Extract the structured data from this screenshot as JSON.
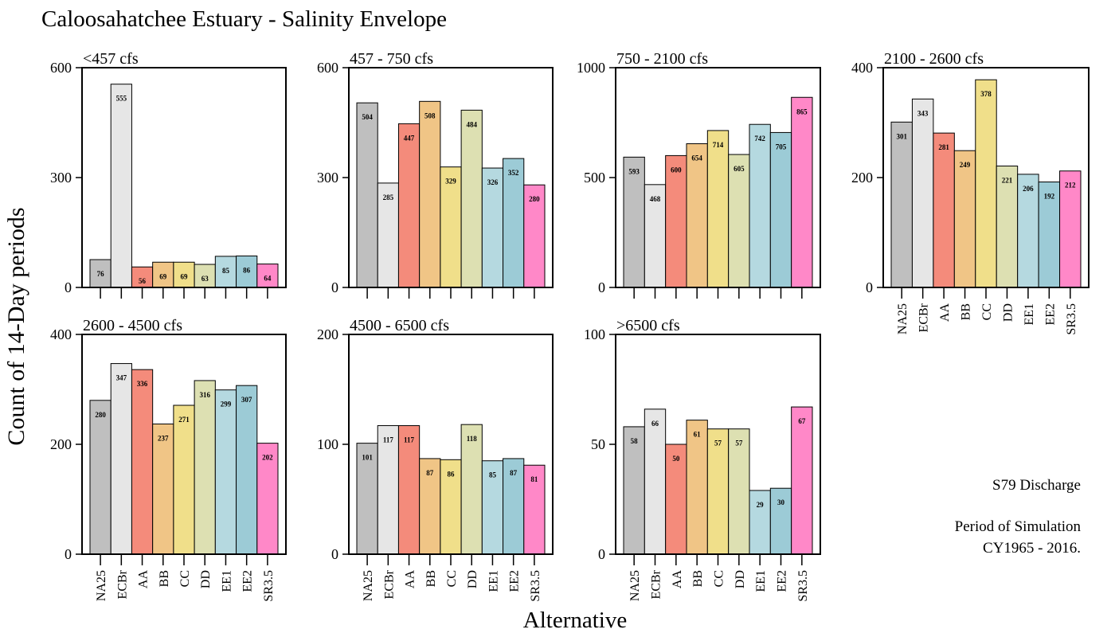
{
  "title": "Caloosahatchee Estuary - Salinity Envelope",
  "ylabel": "Count of 14-Day periods",
  "xlabel": "Alternative",
  "note": {
    "line1": "S79 Discharge",
    "line2": "Period of Simulation",
    "line3": "CY1965 - 2016."
  },
  "colors": {
    "NA25": "#bfbfbf",
    "ECBr": "#e6e6e6",
    "AA": "#f48b7b",
    "BB": "#f0c586",
    "CC": "#f0df8a",
    "DD": "#dde0b2",
    "EE1": "#b5d9e0",
    "EE2": "#9ccbd6",
    "SR3.5": "#ff88c8"
  },
  "chart_data": [
    {
      "type": "bar",
      "title": "<457 cfs",
      "categories": [
        "NA25",
        "ECBr",
        "AA",
        "BB",
        "CC",
        "DD",
        "EE1",
        "EE2",
        "SR3.5"
      ],
      "values": [
        76,
        555,
        56,
        69,
        69,
        63,
        85,
        86,
        64
      ],
      "ylim": [
        0,
        600
      ],
      "yticks": [
        0,
        300,
        600
      ],
      "show_xticklabels": false
    },
    {
      "type": "bar",
      "title": "457 - 750 cfs",
      "categories": [
        "NA25",
        "ECBr",
        "AA",
        "BB",
        "CC",
        "DD",
        "EE1",
        "EE2",
        "SR3.5"
      ],
      "values": [
        504,
        285,
        447,
        508,
        329,
        484,
        326,
        352,
        280
      ],
      "ylim": [
        0,
        600
      ],
      "yticks": [
        0,
        300,
        600
      ],
      "show_xticklabels": false
    },
    {
      "type": "bar",
      "title": "750 - 2100 cfs",
      "categories": [
        "NA25",
        "ECBr",
        "AA",
        "BB",
        "CC",
        "DD",
        "EE1",
        "EE2",
        "SR3.5"
      ],
      "values": [
        593,
        468,
        600,
        654,
        714,
        605,
        742,
        705,
        865
      ],
      "ylim": [
        0,
        1000
      ],
      "yticks": [
        0,
        500,
        1000
      ],
      "show_xticklabels": false
    },
    {
      "type": "bar",
      "title": "2100 - 2600 cfs",
      "categories": [
        "NA25",
        "ECBr",
        "AA",
        "BB",
        "CC",
        "DD",
        "EE1",
        "EE2",
        "SR3.5"
      ],
      "values": [
        301,
        343,
        281,
        249,
        378,
        221,
        206,
        192,
        212
      ],
      "ylim": [
        0,
        400
      ],
      "yticks": [
        0,
        200,
        400
      ],
      "show_xticklabels": true
    },
    {
      "type": "bar",
      "title": "2600 - 4500 cfs",
      "categories": [
        "NA25",
        "ECBr",
        "AA",
        "BB",
        "CC",
        "DD",
        "EE1",
        "EE2",
        "SR3.5"
      ],
      "values": [
        280,
        347,
        336,
        237,
        271,
        316,
        299,
        307,
        202
      ],
      "ylim": [
        0,
        400
      ],
      "yticks": [
        0,
        200,
        400
      ],
      "show_xticklabels": true
    },
    {
      "type": "bar",
      "title": "4500 - 6500 cfs",
      "categories": [
        "NA25",
        "ECBr",
        "AA",
        "BB",
        "CC",
        "DD",
        "EE1",
        "EE2",
        "SR3.5"
      ],
      "values": [
        101,
        117,
        117,
        87,
        86,
        118,
        85,
        87,
        81
      ],
      "ylim": [
        0,
        200
      ],
      "yticks": [
        0,
        100,
        200
      ],
      "show_xticklabels": true
    },
    {
      "type": "bar",
      "title": ">6500 cfs",
      "categories": [
        "NA25",
        "ECBr",
        "AA",
        "BB",
        "CC",
        "DD",
        "EE1",
        "EE2",
        "SR3.5"
      ],
      "values": [
        58,
        66,
        50,
        61,
        57,
        57,
        29,
        30,
        67
      ],
      "ylim": [
        0,
        100
      ],
      "yticks": [
        0,
        50,
        100
      ],
      "show_xticklabels": true
    }
  ]
}
